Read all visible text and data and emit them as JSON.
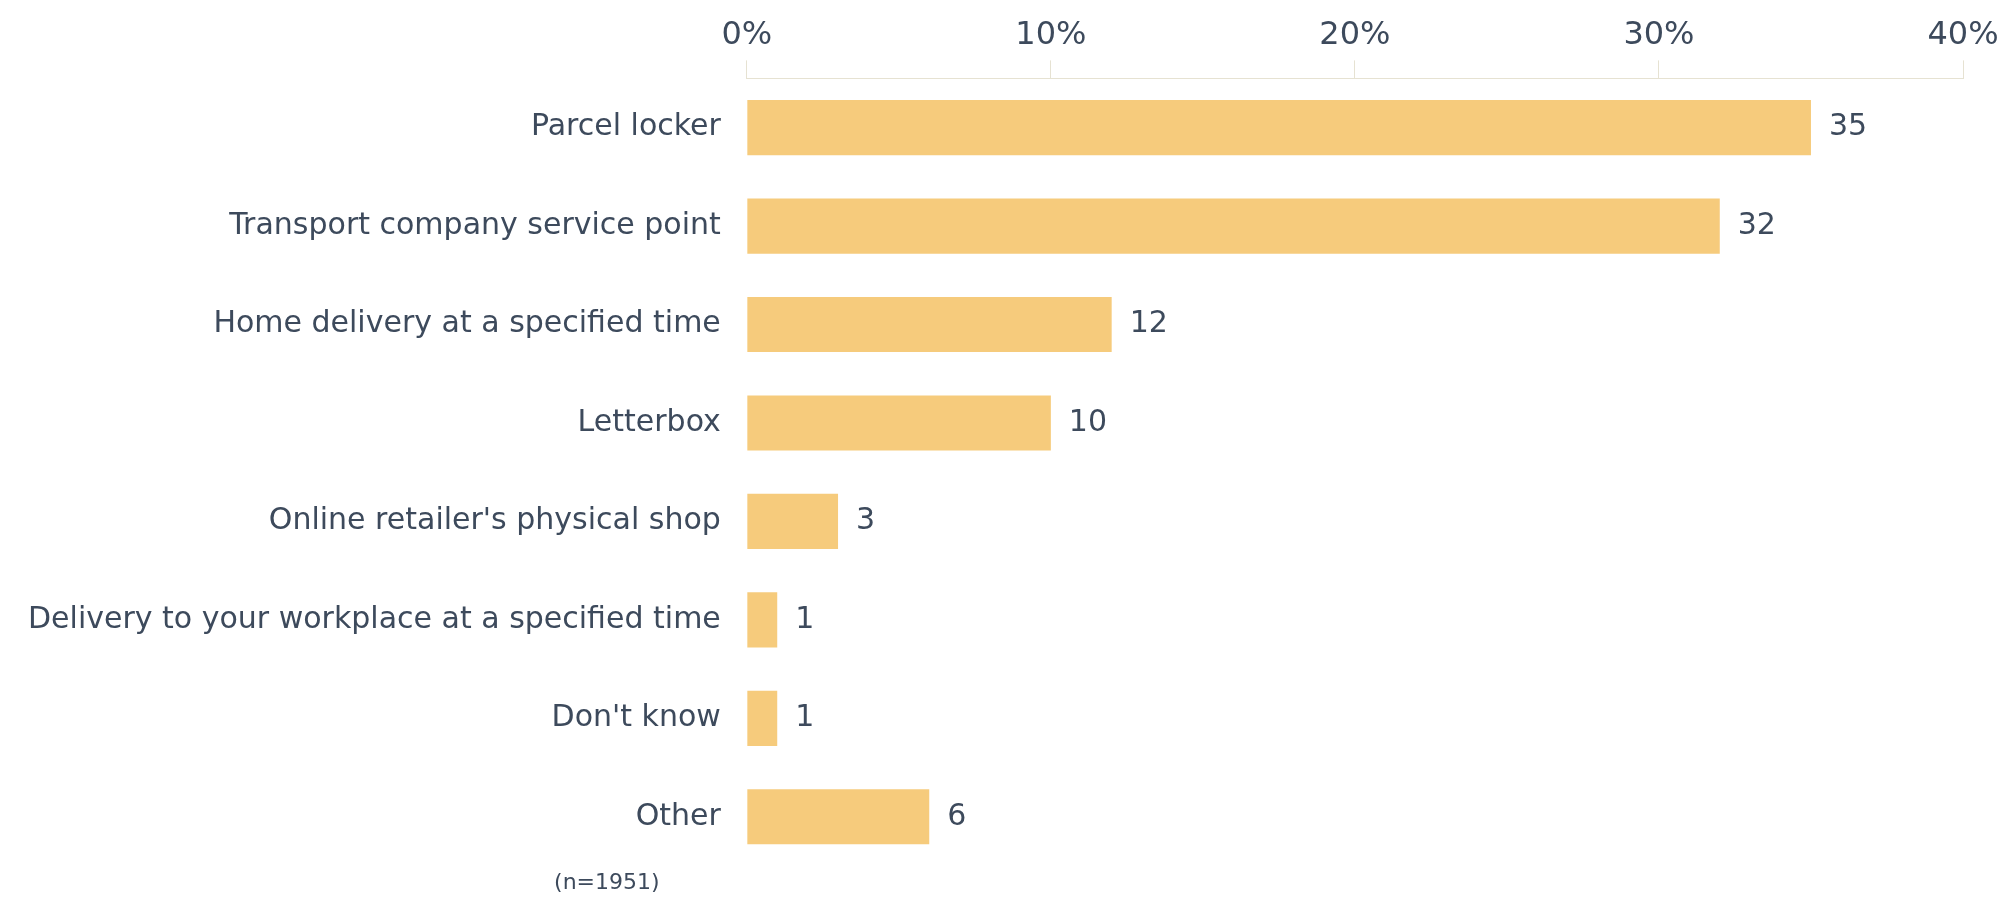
{
  "chart_data": {
    "type": "bar",
    "orientation": "horizontal",
    "categories": [
      "Parcel locker",
      "Transport company service point",
      "Home delivery at a specified time",
      "Letterbox",
      "Online retailer's physical shop",
      "Delivery to your workplace at a specified time",
      "Don't know",
      "Other"
    ],
    "values": [
      35,
      32,
      12,
      10,
      3,
      1,
      1,
      6
    ],
    "color": "#f6cb7c",
    "data_labels": true,
    "xlim": [
      0,
      40
    ],
    "xticks": [
      {
        "value": 0,
        "label": "0%"
      },
      {
        "value": 10,
        "label": "10%"
      },
      {
        "value": 20,
        "label": "20%"
      },
      {
        "value": 30,
        "label": "30%"
      },
      {
        "value": 40,
        "label": "40%"
      }
    ],
    "annotations": [
      "(n=1951)"
    ]
  }
}
